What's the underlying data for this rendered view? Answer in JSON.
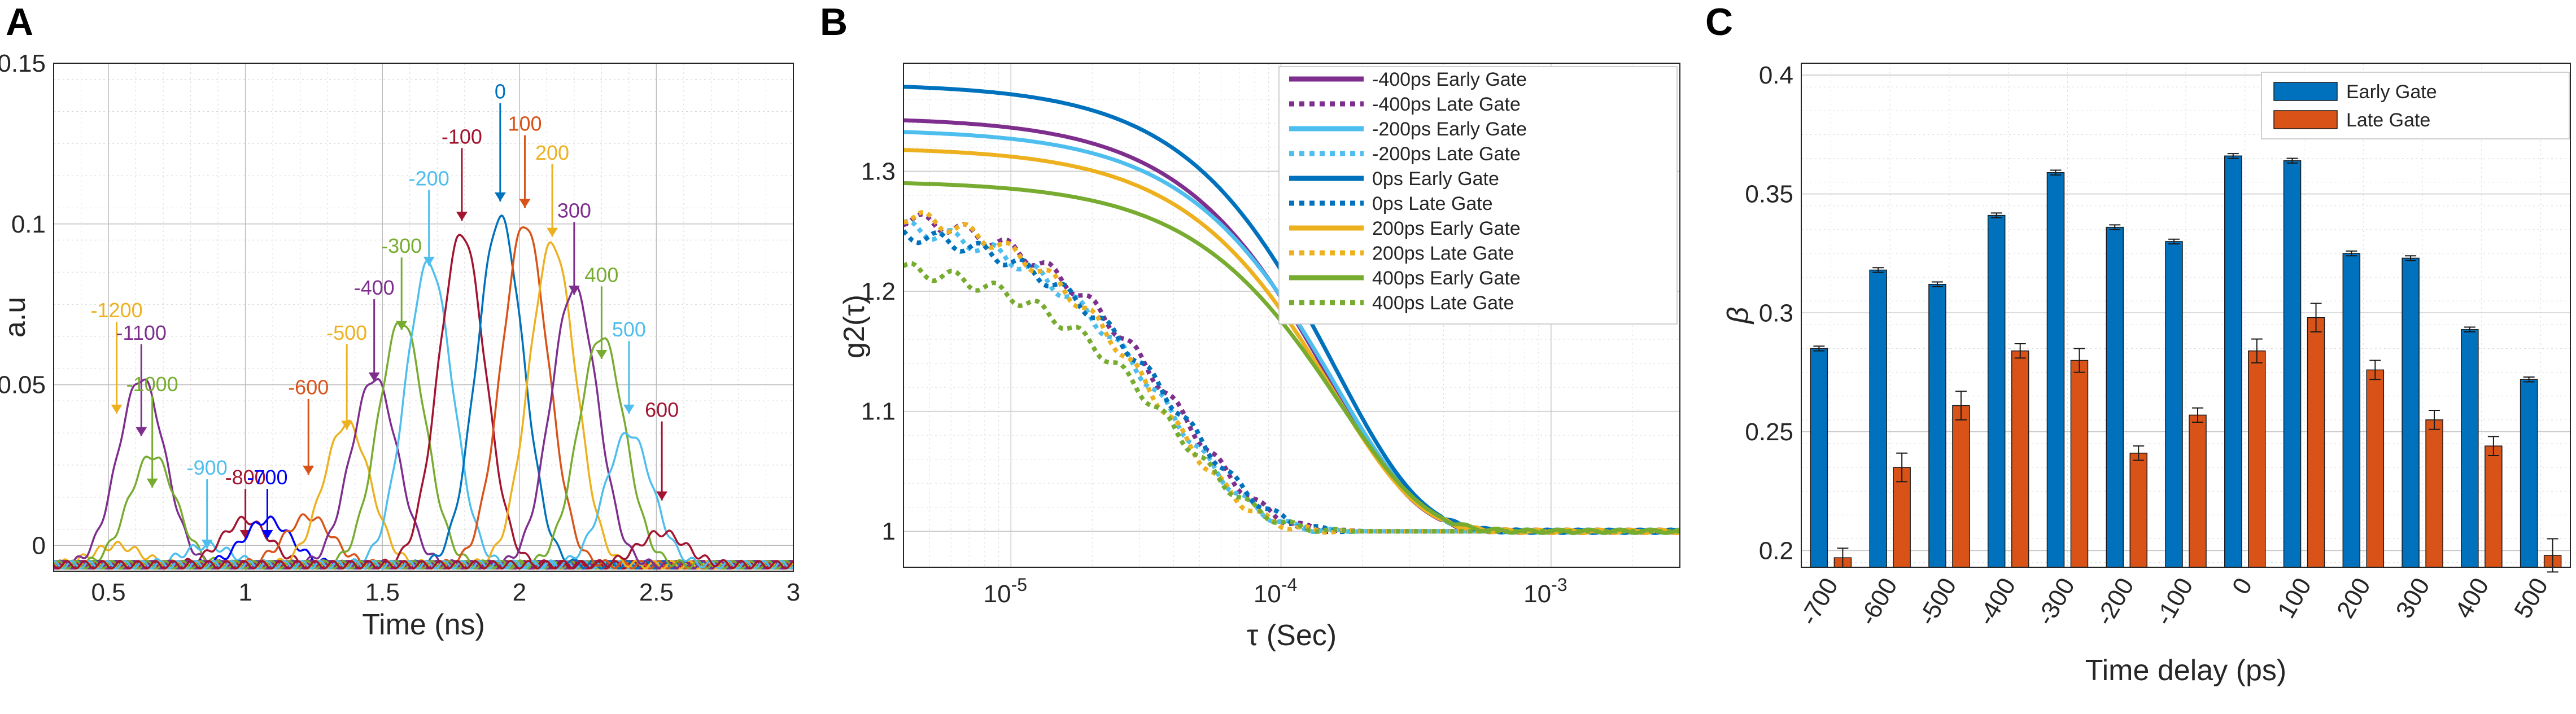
{
  "panels": {
    "A": "A",
    "B": "B",
    "C": "C"
  },
  "chart_data": [
    {
      "panel": "A",
      "type": "line",
      "title": "",
      "xlabel": "Time (ns)",
      "ylabel": "a.u",
      "xlim": [
        0.3,
        3.0
      ],
      "ylim": [
        -0.008,
        0.15
      ],
      "xticks": [
        0.5,
        1,
        1.5,
        2,
        2.5,
        3
      ],
      "xtick_labels": [
        "0.5",
        "1",
        "1.5",
        "2",
        "2.5",
        "3"
      ],
      "yticks": [
        0,
        0.05,
        0.1,
        0.15
      ],
      "ytick_labels": [
        "0",
        "0.05",
        "0.1",
        "0.15"
      ],
      "grid": true,
      "baseline": -0.006,
      "annotation_arrow_length": 0.012,
      "series": [
        {
          "name": "-1200",
          "color": "#EDB120",
          "peak_x": 0.53,
          "peak_y": 0.0,
          "label_y": 0.071,
          "arrow_y": 0.041
        },
        {
          "name": "-1100",
          "color": "#7E2F8E",
          "peak_x": 0.62,
          "peak_y": 0.052,
          "label_y": 0.064,
          "arrow_y": 0.034
        },
        {
          "name": "-1000",
          "color": "#77AC30",
          "peak_x": 0.66,
          "peak_y": 0.028,
          "label_y": 0.048,
          "arrow_y": 0.018
        },
        {
          "name": "-900",
          "color": "#4DBEEE",
          "peak_x": 0.86,
          "peak_y": 0.0,
          "label_y": 0.022,
          "arrow_y": -0.001
        },
        {
          "name": "-800",
          "color": "#A2142F",
          "peak_x": 1.0,
          "peak_y": 0.008,
          "label_y": 0.019,
          "arrow_y": 0.002
        },
        {
          "name": "-700",
          "color": "#0000FF",
          "peak_x": 1.08,
          "peak_y": 0.008,
          "label_y": 0.019,
          "arrow_y": 0.002
        },
        {
          "name": "-600",
          "color": "#D95319",
          "peak_x": 1.23,
          "peak_y": 0.009,
          "label_y": 0.047,
          "arrow_y": 0.022
        },
        {
          "name": "-500",
          "color": "#EDB120",
          "peak_x": 1.37,
          "peak_y": 0.038,
          "label_y": 0.064,
          "arrow_y": 0.036
        },
        {
          "name": "-400",
          "color": "#7E2F8E",
          "peak_x": 1.47,
          "peak_y": 0.052,
          "label_y": 0.078,
          "arrow_y": 0.051
        },
        {
          "name": "-300",
          "color": "#77AC30",
          "peak_x": 1.57,
          "peak_y": 0.07,
          "label_y": 0.091,
          "arrow_y": 0.067
        },
        {
          "name": "-200",
          "color": "#4DBEEE",
          "peak_x": 1.67,
          "peak_y": 0.088,
          "label_y": 0.112,
          "arrow_y": 0.087
        },
        {
          "name": "-100",
          "color": "#A2142F",
          "peak_x": 1.79,
          "peak_y": 0.097,
          "label_y": 0.125,
          "arrow_y": 0.101
        },
        {
          "name": "0",
          "color": "#0072BD",
          "peak_x": 1.93,
          "peak_y": 0.102,
          "label_y": 0.139,
          "arrow_y": 0.107
        },
        {
          "name": "100",
          "color": "#D95319",
          "peak_x": 2.02,
          "peak_y": 0.1,
          "label_y": 0.129,
          "arrow_y": 0.105
        },
        {
          "name": "200",
          "color": "#EDB120",
          "peak_x": 2.12,
          "peak_y": 0.094,
          "label_y": 0.12,
          "arrow_y": 0.096
        },
        {
          "name": "300",
          "color": "#7E2F8E",
          "peak_x": 2.2,
          "peak_y": 0.08,
          "label_y": 0.102,
          "arrow_y": 0.078
        },
        {
          "name": "400",
          "color": "#77AC30",
          "peak_x": 2.3,
          "peak_y": 0.065,
          "label_y": 0.082,
          "arrow_y": 0.058
        },
        {
          "name": "500",
          "color": "#4DBEEE",
          "peak_x": 2.4,
          "peak_y": 0.035,
          "label_y": 0.065,
          "arrow_y": 0.041
        },
        {
          "name": "600",
          "color": "#A2142F",
          "peak_x": 2.52,
          "peak_y": 0.004,
          "label_y": 0.04,
          "arrow_y": 0.014
        }
      ]
    },
    {
      "panel": "B",
      "type": "line",
      "title": "",
      "xlabel": "τ (Sec)",
      "ylabel": "g2(τ)",
      "xscale": "log",
      "xlim": [
        4e-06,
        0.003
      ],
      "ylim": [
        0.97,
        1.39
      ],
      "xticks": [
        1e-05,
        0.0001,
        0.001
      ],
      "xtick_labels": [
        {
          "base": "10",
          "exp": "-5"
        },
        {
          "base": "10",
          "exp": "-4"
        },
        {
          "base": "10",
          "exp": "-3"
        }
      ],
      "yticks": [
        1,
        1.1,
        1.2,
        1.3
      ],
      "ytick_labels": [
        "1",
        "1.1",
        "1.2",
        "1.3"
      ],
      "grid": true,
      "legend": "top-right",
      "series": [
        {
          "name": "-400ps Early Gate",
          "color": "#7E2F8E",
          "style": "solid",
          "start": 1.345,
          "tau_c": 0.000115
        },
        {
          "name": "-400ps Late Gate",
          "color": "#7E2F8E",
          "style": "dotted",
          "start": 1.272,
          "tau_c": 3.2e-05
        },
        {
          "name": "-200ps Early Gate",
          "color": "#4DBEEE",
          "style": "solid",
          "start": 1.335,
          "tau_c": 0.00012
        },
        {
          "name": "-200ps Late Gate",
          "color": "#4DBEEE",
          "style": "dotted",
          "start": 1.265,
          "tau_c": 3e-05
        },
        {
          "name": "0ps Early Gate",
          "color": "#0072BD",
          "style": "solid",
          "start": 1.373,
          "tau_c": 0.00012
        },
        {
          "name": "0ps Late Gate",
          "color": "#0072BD",
          "style": "dotted",
          "start": 1.258,
          "tau_c": 3.3e-05
        },
        {
          "name": "200ps Early Gate",
          "color": "#EDB120",
          "style": "solid",
          "start": 1.32,
          "tau_c": 0.000118
        },
        {
          "name": "200ps Late Gate",
          "color": "#EDB120",
          "style": "dotted",
          "start": 1.277,
          "tau_c": 2.8e-05
        },
        {
          "name": "400ps Early Gate",
          "color": "#77AC30",
          "style": "solid",
          "start": 1.292,
          "tau_c": 0.000125
        },
        {
          "name": "400ps Late Gate",
          "color": "#77AC30",
          "style": "dotted",
          "start": 1.228,
          "tau_c": 3.1e-05
        }
      ]
    },
    {
      "panel": "C",
      "type": "bar",
      "title": "",
      "xlabel": "Time delay (ps)",
      "ylabel": "β",
      "ylim": [
        0.193,
        0.405
      ],
      "yticks": [
        0.2,
        0.25,
        0.3,
        0.35,
        0.4
      ],
      "ytick_labels": [
        "0.2",
        "0.25",
        "0.3",
        "0.35",
        "0.4"
      ],
      "grid": true,
      "legend": "top-right",
      "categories": [
        "-700",
        "-600",
        "-500",
        "-400",
        "-300",
        "-200",
        "-100",
        "0",
        "100",
        "200",
        "300",
        "400",
        "500"
      ],
      "series": [
        {
          "name": "Early Gate",
          "color": "#0072BD",
          "values": [
            0.285,
            0.318,
            0.312,
            0.341,
            0.359,
            0.336,
            0.33,
            0.366,
            0.364,
            0.325,
            0.323,
            0.293,
            0.272
          ],
          "errors": [
            0.001,
            0.001,
            0.001,
            0.001,
            0.001,
            0.001,
            0.001,
            0.001,
            0.001,
            0.001,
            0.001,
            0.001,
            0.001
          ]
        },
        {
          "name": "Late Gate",
          "color": "#D95319",
          "values": [
            0.197,
            0.235,
            0.261,
            0.284,
            0.28,
            0.241,
            0.257,
            0.284,
            0.298,
            0.276,
            0.255,
            0.244,
            0.198
          ],
          "errors": [
            0.004,
            0.006,
            0.006,
            0.003,
            0.005,
            0.003,
            0.003,
            0.005,
            0.006,
            0.004,
            0.004,
            0.004,
            0.007
          ]
        }
      ]
    }
  ]
}
